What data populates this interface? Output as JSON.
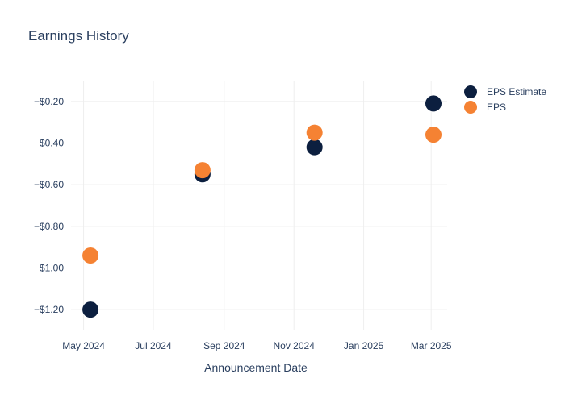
{
  "chart_data": {
    "type": "scatter",
    "title": "Earnings History",
    "xlabel": "Announcement Date",
    "ylabel": "",
    "x_ticks": [
      "May 2024",
      "Jul 2024",
      "Sep 2024",
      "Nov 2024",
      "Jan 2025",
      "Mar 2025"
    ],
    "y_ticks": [
      "−$0.20",
      "−$0.40",
      "−$0.60",
      "−$0.80",
      "−$1.00",
      "−$1.20"
    ],
    "ylim": [
      -1.3,
      -0.1
    ],
    "xlim": [
      "2024-04-20",
      "2025-03-15"
    ],
    "legend_position": "top-right",
    "grid": true,
    "series": [
      {
        "name": "EPS Estimate",
        "color": "#0c1f3f",
        "points": [
          {
            "x": "2024-05-07",
            "y": -1.2
          },
          {
            "x": "2024-08-13",
            "y": -0.55
          },
          {
            "x": "2024-11-19",
            "y": -0.42
          },
          {
            "x": "2025-03-03",
            "y": -0.21
          }
        ]
      },
      {
        "name": "EPS",
        "color": "#f58233",
        "points": [
          {
            "x": "2024-05-07",
            "y": -0.94
          },
          {
            "x": "2024-08-13",
            "y": -0.53
          },
          {
            "x": "2024-11-19",
            "y": -0.35
          },
          {
            "x": "2025-03-03",
            "y": -0.36
          }
        ]
      }
    ]
  }
}
